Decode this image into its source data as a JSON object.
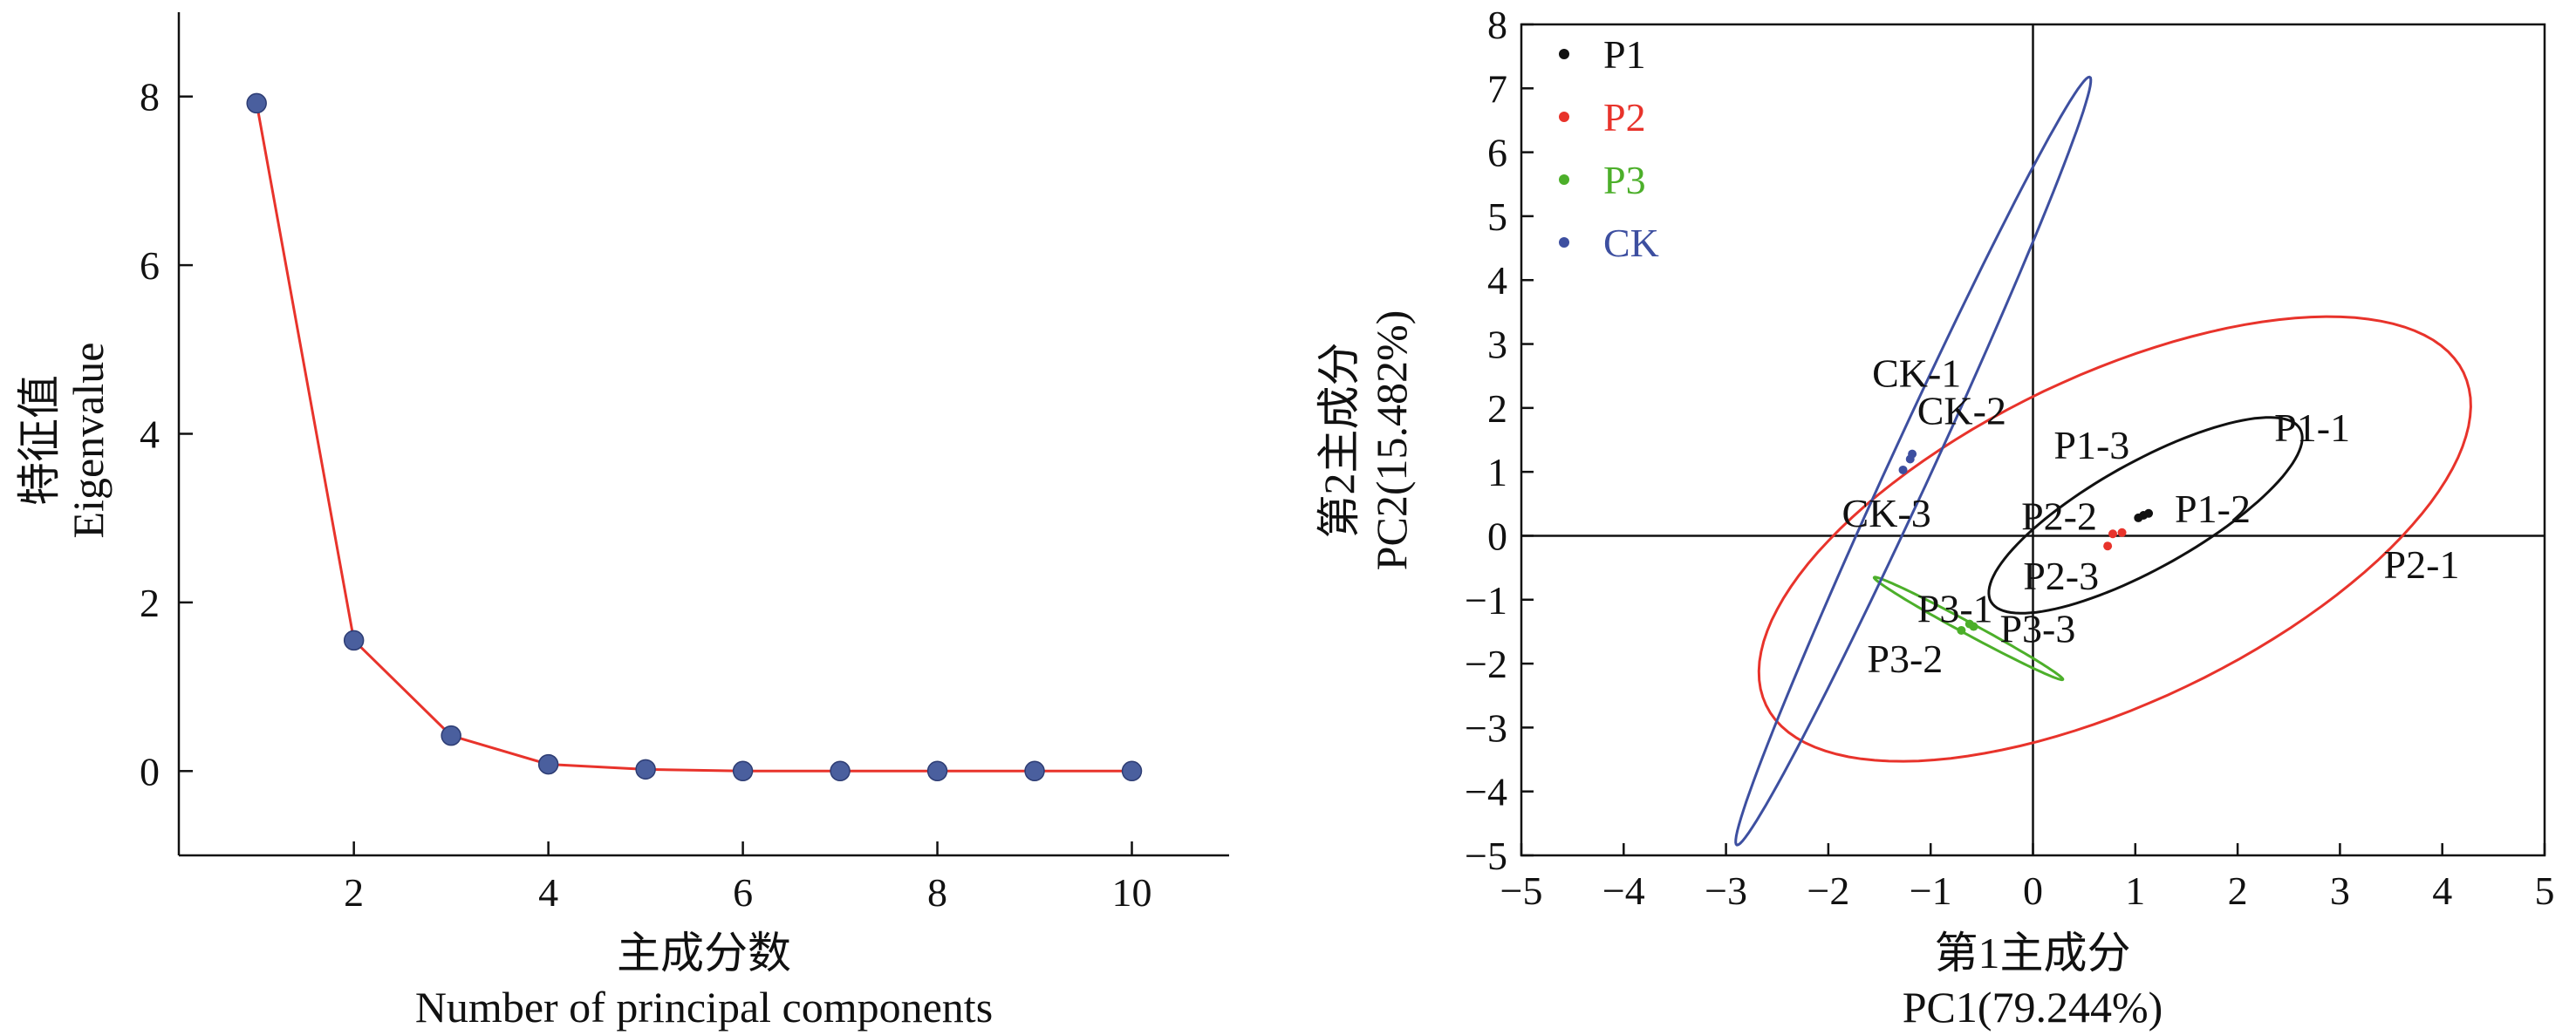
{
  "chart_data": [
    {
      "type": "line",
      "title": "",
      "xlabel_cn": "主成分数",
      "xlabel": "Number of principal components",
      "ylabel_cn": "特征值",
      "ylabel": "Eigenvalue",
      "xlim": [
        0.2,
        11
      ],
      "ylim": [
        -1,
        9
      ],
      "x_ticks": [
        2,
        4,
        6,
        8,
        10
      ],
      "y_ticks": [
        0,
        2,
        4,
        6,
        8
      ],
      "x": [
        1,
        2,
        3,
        4,
        5,
        6,
        7,
        8,
        9,
        10
      ],
      "values": [
        7.92,
        1.55,
        0.42,
        0.08,
        0.02,
        0.0,
        0.0,
        0.0,
        0.0,
        0.0
      ],
      "line_color": "#e8332b",
      "marker_color": "#4a5f9e",
      "grid": false
    },
    {
      "type": "scatter",
      "title": "",
      "xlabel_cn": "第1主成分",
      "xlabel": "PC1(79.244%)",
      "ylabel_cn": "第2主成分",
      "ylabel": "PC2(15.482%)",
      "xlim": [
        -5,
        5
      ],
      "ylim": [
        -5,
        8
      ],
      "x_ticks": [
        -5,
        -4,
        -3,
        -2,
        -1,
        0,
        1,
        2,
        3,
        4,
        5
      ],
      "y_ticks": [
        -5,
        -4,
        -3,
        -2,
        -1,
        0,
        1,
        2,
        3,
        4,
        5,
        6,
        7,
        8
      ],
      "grid": false,
      "legend_position": "top-left",
      "series": [
        {
          "name": "P1",
          "color": "#111111",
          "points": [
            {
              "label": "P1-1",
              "x": 1.08,
              "y": 0.32
            },
            {
              "label": "P1-2",
              "x": 1.13,
              "y": 0.35
            },
            {
              "label": "P1-3",
              "x": 1.03,
              "y": 0.28
            }
          ],
          "ellipse": {
            "cx": 1.1,
            "cy": 0.32,
            "rx": 2.05,
            "ry": 0.7,
            "angle_deg": 45
          }
        },
        {
          "name": "P2",
          "color": "#e8332b",
          "points": [
            {
              "label": "P2-1",
              "x": 0.87,
              "y": 0.05
            },
            {
              "label": "P2-2",
              "x": 0.78,
              "y": 0.03
            },
            {
              "label": "P2-3",
              "x": 0.73,
              "y": -0.16
            }
          ],
          "ellipse": {
            "cx": 0.8,
            "cy": -0.05,
            "rx": 4.4,
            "ry": 2.2,
            "angle_deg": 45
          }
        },
        {
          "name": "P3",
          "color": "#4caf2a",
          "points": [
            {
              "label": "P3-1",
              "x": -0.62,
              "y": -1.38
            },
            {
              "label": "P3-2",
              "x": -0.7,
              "y": -1.48
            },
            {
              "label": "P3-3",
              "x": -0.58,
              "y": -1.42
            }
          ],
          "ellipse": {
            "cx": -0.63,
            "cy": -1.45,
            "rx": 1.22,
            "ry": 0.08,
            "angle_deg": -41
          }
        },
        {
          "name": "CK",
          "color": "#3d4fa0",
          "points": [
            {
              "label": "CK-1",
              "x": -1.18,
              "y": 1.28
            },
            {
              "label": "CK-2",
              "x": -1.2,
              "y": 1.2
            },
            {
              "label": "CK-3",
              "x": -1.27,
              "y": 1.03
            }
          ],
          "ellipse": {
            "cx": -1.17,
            "cy": 1.17,
            "rx": 6.25,
            "ry": 0.22,
            "angle_deg": 74
          }
        }
      ]
    }
  ]
}
